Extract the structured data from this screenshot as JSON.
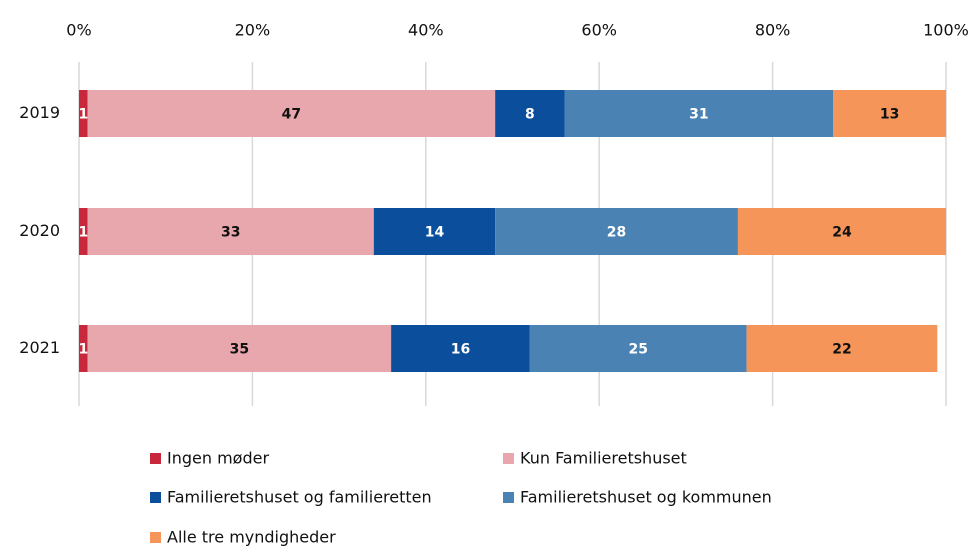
{
  "chart_data": {
    "type": "bar",
    "orientation": "horizontal",
    "stacked": true,
    "categories": [
      "2019",
      "2020",
      "2021"
    ],
    "series": [
      {
        "name": "Ingen møder",
        "color": "#c8283c",
        "values": [
          1,
          1,
          1
        ]
      },
      {
        "name": "Kun Familieretshuset",
        "color": "#e8a7ad",
        "values": [
          47,
          33,
          35
        ]
      },
      {
        "name": "Familieretshuset og familieretten",
        "color": "#0b4f9c",
        "values": [
          8,
          14,
          16
        ]
      },
      {
        "name": "Familieretshuset og kommunen",
        "color": "#4a82b4",
        "values": [
          31,
          28,
          25
        ]
      },
      {
        "name": "Alle tre myndigheder",
        "color": "#f5955a",
        "values": [
          13,
          24,
          22
        ]
      }
    ],
    "xlim": [
      0,
      100
    ],
    "xticks": [
      {
        "value": 0,
        "label": "0%"
      },
      {
        "value": 20,
        "label": "20%"
      },
      {
        "value": 40,
        "label": "40%"
      },
      {
        "value": 60,
        "label": "60%"
      },
      {
        "value": 80,
        "label": "80%"
      },
      {
        "value": 100,
        "label": "100%"
      }
    ],
    "grid": true,
    "legend": "bottom"
  }
}
